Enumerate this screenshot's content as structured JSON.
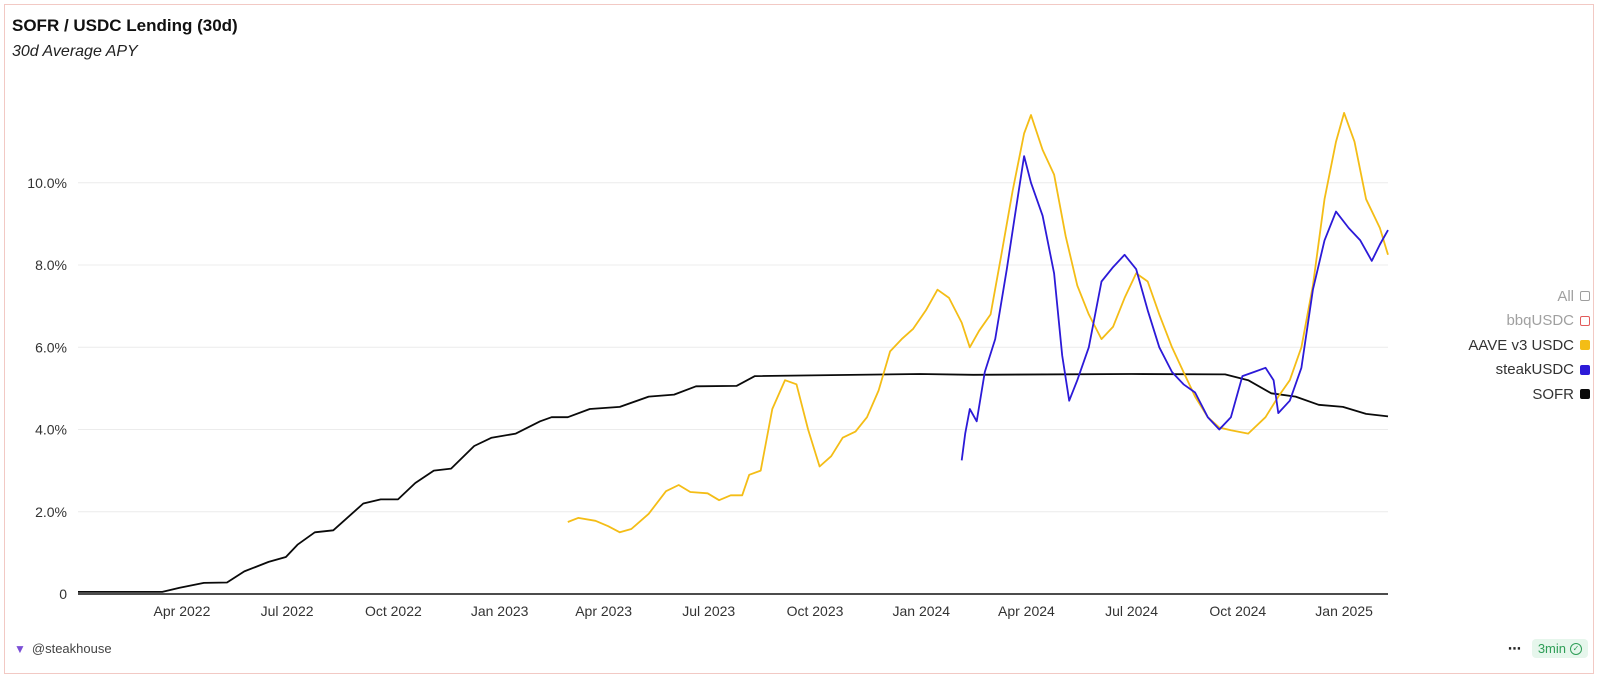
{
  "header": {
    "title": "SOFR / USDC Lending (30d)",
    "subtitle": "30d Average APY"
  },
  "legend": [
    {
      "label": "All",
      "color": "#9e9e9e",
      "style": "outline",
      "active": false
    },
    {
      "label": "bbqUSDC",
      "color": "#e25b5b",
      "style": "outline",
      "active": false
    },
    {
      "label": "AAVE v3 USDC",
      "color": "#f4bd16",
      "style": "filled",
      "active": true
    },
    {
      "label": "steakUSDC",
      "color": "#2c1ad8",
      "style": "filled",
      "active": true
    },
    {
      "label": "SOFR",
      "color": "#0a0a0a",
      "style": "filled",
      "active": true
    }
  ],
  "footer": {
    "author": "@steakhouse",
    "logo_icon": "steakhouse-logo-icon",
    "more_icon": "more-dots-icon",
    "refresh_badge": "3min",
    "refresh_icon": "check-circle-icon"
  },
  "chart_data": {
    "type": "line",
    "title": "SOFR / USDC Lending (30d)",
    "subtitle": "30d Average APY",
    "x_axis": {
      "type": "date",
      "range": [
        "2022-01-01",
        "2025-02-08"
      ],
      "tick_labels": [
        "Apr 2022",
        "Jul 2022",
        "Oct 2022",
        "Jan 2023",
        "Apr 2023",
        "Jul 2023",
        "Oct 2023",
        "Jan 2024",
        "Apr 2024",
        "Jul 2024",
        "Oct 2024",
        "Jan 2025"
      ],
      "tick_dates": [
        "2022-04-01",
        "2022-07-01",
        "2022-10-01",
        "2023-01-01",
        "2023-04-01",
        "2023-07-01",
        "2023-10-01",
        "2024-01-01",
        "2024-04-01",
        "2024-07-01",
        "2024-10-01",
        "2025-01-01"
      ]
    },
    "y_axis": {
      "range": [
        0,
        12.5
      ],
      "ticks": [
        0,
        2,
        4,
        6,
        8,
        10
      ],
      "tick_labels": [
        "0",
        "2.0%",
        "4.0%",
        "6.0%",
        "8.0%",
        "10.0%"
      ],
      "unit": "%"
    },
    "grid": "horizontal",
    "legend_position": "right",
    "series": [
      {
        "name": "SOFR",
        "color": "#0a0a0a",
        "points": [
          [
            "2022-01-01",
            0.05
          ],
          [
            "2022-03-15",
            0.05
          ],
          [
            "2022-03-30",
            0.15
          ],
          [
            "2022-04-20",
            0.27
          ],
          [
            "2022-05-10",
            0.28
          ],
          [
            "2022-05-25",
            0.55
          ],
          [
            "2022-06-15",
            0.78
          ],
          [
            "2022-06-30",
            0.9
          ],
          [
            "2022-07-10",
            1.2
          ],
          [
            "2022-07-25",
            1.5
          ],
          [
            "2022-08-10",
            1.55
          ],
          [
            "2022-09-05",
            2.2
          ],
          [
            "2022-09-20",
            2.3
          ],
          [
            "2022-10-05",
            2.3
          ],
          [
            "2022-10-20",
            2.7
          ],
          [
            "2022-11-05",
            3.0
          ],
          [
            "2022-11-20",
            3.05
          ],
          [
            "2022-12-10",
            3.6
          ],
          [
            "2022-12-25",
            3.8
          ],
          [
            "2023-01-15",
            3.9
          ],
          [
            "2023-02-05",
            4.2
          ],
          [
            "2023-02-15",
            4.3
          ],
          [
            "2023-03-01",
            4.3
          ],
          [
            "2023-03-20",
            4.5
          ],
          [
            "2023-04-15",
            4.55
          ],
          [
            "2023-05-10",
            4.8
          ],
          [
            "2023-06-01",
            4.85
          ],
          [
            "2023-06-20",
            5.05
          ],
          [
            "2023-07-25",
            5.06
          ],
          [
            "2023-08-10",
            5.3
          ],
          [
            "2023-12-31",
            5.35
          ],
          [
            "2024-02-15",
            5.33
          ],
          [
            "2024-07-01",
            5.35
          ],
          [
            "2024-09-20",
            5.34
          ],
          [
            "2024-10-10",
            5.2
          ],
          [
            "2024-10-30",
            4.88
          ],
          [
            "2024-11-20",
            4.8
          ],
          [
            "2024-12-10",
            4.6
          ],
          [
            "2024-12-31",
            4.55
          ],
          [
            "2025-01-20",
            4.38
          ],
          [
            "2025-02-08",
            4.32
          ]
        ]
      },
      {
        "name": "AAVE v3 USDC",
        "color": "#f4bd16",
        "points": [
          [
            "2023-03-01",
            1.75
          ],
          [
            "2023-03-10",
            1.85
          ],
          [
            "2023-03-25",
            1.78
          ],
          [
            "2023-04-05",
            1.65
          ],
          [
            "2023-04-15",
            1.5
          ],
          [
            "2023-04-25",
            1.58
          ],
          [
            "2023-05-10",
            1.95
          ],
          [
            "2023-05-25",
            2.5
          ],
          [
            "2023-06-05",
            2.65
          ],
          [
            "2023-06-15",
            2.48
          ],
          [
            "2023-06-30",
            2.45
          ],
          [
            "2023-07-10",
            2.28
          ],
          [
            "2023-07-20",
            2.4
          ],
          [
            "2023-07-30",
            2.4
          ],
          [
            "2023-08-05",
            2.9
          ],
          [
            "2023-08-15",
            3.0
          ],
          [
            "2023-08-25",
            4.5
          ],
          [
            "2023-09-05",
            5.2
          ],
          [
            "2023-09-15",
            5.1
          ],
          [
            "2023-09-25",
            4.0
          ],
          [
            "2023-10-05",
            3.1
          ],
          [
            "2023-10-15",
            3.35
          ],
          [
            "2023-10-25",
            3.8
          ],
          [
            "2023-11-05",
            3.95
          ],
          [
            "2023-11-15",
            4.3
          ],
          [
            "2023-11-25",
            4.95
          ],
          [
            "2023-12-05",
            5.9
          ],
          [
            "2023-12-15",
            6.2
          ],
          [
            "2023-12-25",
            6.45
          ],
          [
            "2024-01-05",
            6.9
          ],
          [
            "2024-01-15",
            7.4
          ],
          [
            "2024-01-25",
            7.2
          ],
          [
            "2024-02-05",
            6.6
          ],
          [
            "2024-02-12",
            6.0
          ],
          [
            "2024-02-20",
            6.4
          ],
          [
            "2024-03-01",
            6.8
          ],
          [
            "2024-03-10",
            8.2
          ],
          [
            "2024-03-20",
            9.8
          ],
          [
            "2024-03-30",
            11.2
          ],
          [
            "2024-04-05",
            11.65
          ],
          [
            "2024-04-15",
            10.8
          ],
          [
            "2024-04-25",
            10.2
          ],
          [
            "2024-05-05",
            8.7
          ],
          [
            "2024-05-15",
            7.5
          ],
          [
            "2024-05-25",
            6.8
          ],
          [
            "2024-06-05",
            6.2
          ],
          [
            "2024-06-15",
            6.5
          ],
          [
            "2024-06-25",
            7.2
          ],
          [
            "2024-07-05",
            7.8
          ],
          [
            "2024-07-15",
            7.6
          ],
          [
            "2024-07-25",
            6.8
          ],
          [
            "2024-08-05",
            6.0
          ],
          [
            "2024-08-15",
            5.4
          ],
          [
            "2024-08-25",
            4.8
          ],
          [
            "2024-09-05",
            4.3
          ],
          [
            "2024-09-15",
            4.05
          ],
          [
            "2024-09-25",
            3.98
          ],
          [
            "2024-10-10",
            3.9
          ],
          [
            "2024-10-25",
            4.3
          ],
          [
            "2024-11-05",
            4.8
          ],
          [
            "2024-11-15",
            5.2
          ],
          [
            "2024-11-25",
            6.0
          ],
          [
            "2024-12-05",
            7.5
          ],
          [
            "2024-12-15",
            9.6
          ],
          [
            "2024-12-25",
            11.0
          ],
          [
            "2025-01-01",
            11.7
          ],
          [
            "2025-01-10",
            11.0
          ],
          [
            "2025-01-20",
            9.6
          ],
          [
            "2025-02-01",
            8.9
          ],
          [
            "2025-02-08",
            8.25
          ]
        ]
      },
      {
        "name": "steakUSDC",
        "color": "#2c1ad8",
        "points": [
          [
            "2024-02-05",
            3.25
          ],
          [
            "2024-02-08",
            3.9
          ],
          [
            "2024-02-12",
            4.5
          ],
          [
            "2024-02-18",
            4.2
          ],
          [
            "2024-02-25",
            5.4
          ],
          [
            "2024-03-05",
            6.2
          ],
          [
            "2024-03-15",
            7.9
          ],
          [
            "2024-03-22",
            9.2
          ],
          [
            "2024-03-30",
            10.65
          ],
          [
            "2024-04-05",
            10.0
          ],
          [
            "2024-04-15",
            9.2
          ],
          [
            "2024-04-25",
            7.8
          ],
          [
            "2024-05-02",
            5.8
          ],
          [
            "2024-05-08",
            4.7
          ],
          [
            "2024-05-15",
            5.2
          ],
          [
            "2024-05-25",
            6.0
          ],
          [
            "2024-06-05",
            7.6
          ],
          [
            "2024-06-15",
            7.95
          ],
          [
            "2024-06-25",
            8.25
          ],
          [
            "2024-07-05",
            7.9
          ],
          [
            "2024-07-15",
            6.9
          ],
          [
            "2024-07-25",
            6.0
          ],
          [
            "2024-08-05",
            5.4
          ],
          [
            "2024-08-15",
            5.1
          ],
          [
            "2024-08-25",
            4.9
          ],
          [
            "2024-09-05",
            4.3
          ],
          [
            "2024-09-15",
            4.0
          ],
          [
            "2024-09-25",
            4.3
          ],
          [
            "2024-10-05",
            5.3
          ],
          [
            "2024-10-15",
            5.4
          ],
          [
            "2024-10-25",
            5.5
          ],
          [
            "2024-11-01",
            5.2
          ],
          [
            "2024-11-05",
            4.4
          ],
          [
            "2024-11-15",
            4.7
          ],
          [
            "2024-11-25",
            5.5
          ],
          [
            "2024-12-05",
            7.4
          ],
          [
            "2024-12-15",
            8.6
          ],
          [
            "2024-12-25",
            9.3
          ],
          [
            "2025-01-05",
            8.9
          ],
          [
            "2025-01-15",
            8.6
          ],
          [
            "2025-01-25",
            8.1
          ],
          [
            "2025-02-01",
            8.5
          ],
          [
            "2025-02-08",
            8.85
          ]
        ]
      }
    ]
  }
}
